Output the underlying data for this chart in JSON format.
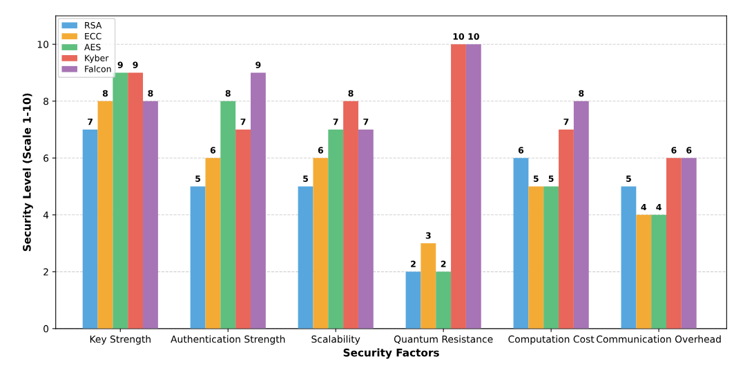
{
  "chart_data": {
    "type": "bar",
    "xlabel": "Security Factors",
    "ylabel": "Security Level (Scale 1-10)",
    "categories": [
      "Key Strength",
      "Authentication Strength",
      "Scalability",
      "Quantum Resistance",
      "Computation Cost",
      "Communication Overhead"
    ],
    "series": [
      {
        "name": "RSA",
        "color": "#57a7de",
        "values": [
          7,
          5,
          5,
          2,
          6,
          5
        ]
      },
      {
        "name": "ECC",
        "color": "#f4ab35",
        "values": [
          8,
          6,
          6,
          3,
          5,
          4
        ]
      },
      {
        "name": "AES",
        "color": "#5fbf7e",
        "values": [
          9,
          8,
          7,
          2,
          5,
          4
        ]
      },
      {
        "name": "Kyber",
        "color": "#e8675a",
        "values": [
          9,
          7,
          8,
          10,
          7,
          6
        ]
      },
      {
        "name": "Falcon",
        "color": "#a774b5",
        "values": [
          8,
          9,
          7,
          10,
          8,
          6
        ]
      }
    ],
    "ylim": [
      0,
      11
    ],
    "yticks": [
      0,
      2,
      4,
      6,
      8,
      10
    ],
    "grid": "y",
    "legend": "top left",
    "data_labels": true
  }
}
